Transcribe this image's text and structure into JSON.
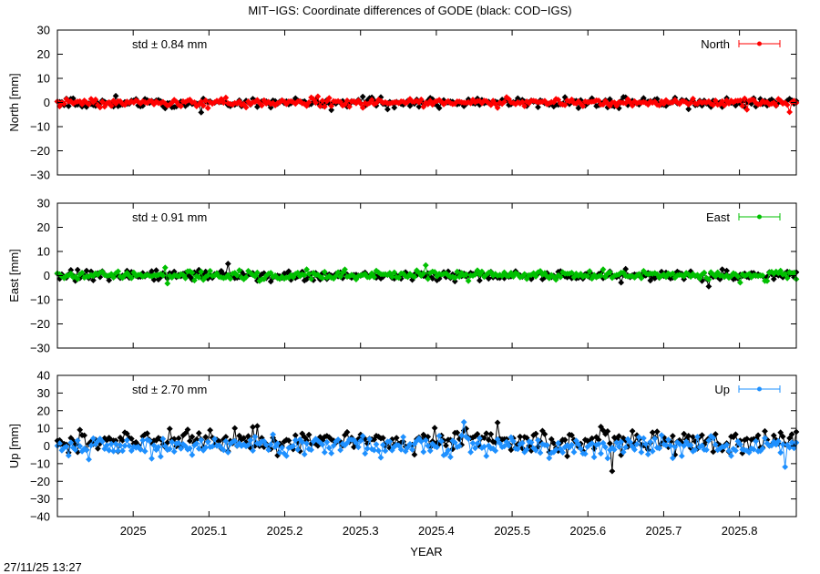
{
  "title": "MIT−IGS: Coordinate differences of GODE (black: COD−IGS)",
  "timestamp": "27/11/25 13:27",
  "xlabel": "YEAR",
  "x_ticks": [
    "2025",
    "2025.1",
    "2025.2",
    "2025.3",
    "2025.4",
    "2025.5",
    "2025.6",
    "2025.7",
    "2025.8"
  ],
  "chart_data": [
    {
      "type": "line",
      "component": "North",
      "ylabel": "North [mm]",
      "legend": "North",
      "legend_position": "top-right",
      "std_label": "std ± 0.84 mm",
      "color": "#ff0000",
      "ylim": [
        -30,
        30
      ],
      "y_ticks": [
        "30",
        "20",
        "10",
        "0",
        "−10",
        "−20",
        "−30"
      ],
      "xlim": [
        2024.9,
        2025.875
      ],
      "series": [
        {
          "role": "main",
          "color": "#ff0000",
          "amplitude": 0.84,
          "offset": 0.0
        },
        {
          "role": "comparison",
          "color": "#000000",
          "amplitude": 0.9,
          "offset": -0.1
        }
      ]
    },
    {
      "type": "line",
      "component": "East",
      "ylabel": "East [mm]",
      "legend": "East",
      "legend_position": "top-right",
      "std_label": "std ± 0.91 mm",
      "color": "#00c000",
      "ylim": [
        -30,
        30
      ],
      "y_ticks": [
        "30",
        "20",
        "10",
        "0",
        "−10",
        "−20",
        "−30"
      ],
      "xlim": [
        2024.9,
        2025.875
      ],
      "series": [
        {
          "role": "main",
          "color": "#00c000",
          "amplitude": 0.91,
          "offset": 0.2
        },
        {
          "role": "comparison",
          "color": "#000000",
          "amplitude": 0.95,
          "offset": 0.0
        }
      ]
    },
    {
      "type": "line",
      "component": "Up",
      "ylabel": "Up [mm]",
      "legend": "Up",
      "legend_position": "top-right",
      "std_label": "std ± 2.70 mm",
      "color": "#1e90ff",
      "ylim": [
        -40,
        40
      ],
      "y_ticks": [
        "40",
        "30",
        "20",
        "10",
        "0",
        "−10",
        "−20",
        "−30",
        "−40"
      ],
      "xlim": [
        2024.9,
        2025.875
      ],
      "series": [
        {
          "role": "main",
          "color": "#1e90ff",
          "amplitude": 2.7,
          "offset": 0.0
        },
        {
          "role": "comparison",
          "color": "#000000",
          "amplitude": 2.9,
          "offset": 3.0
        }
      ]
    }
  ]
}
